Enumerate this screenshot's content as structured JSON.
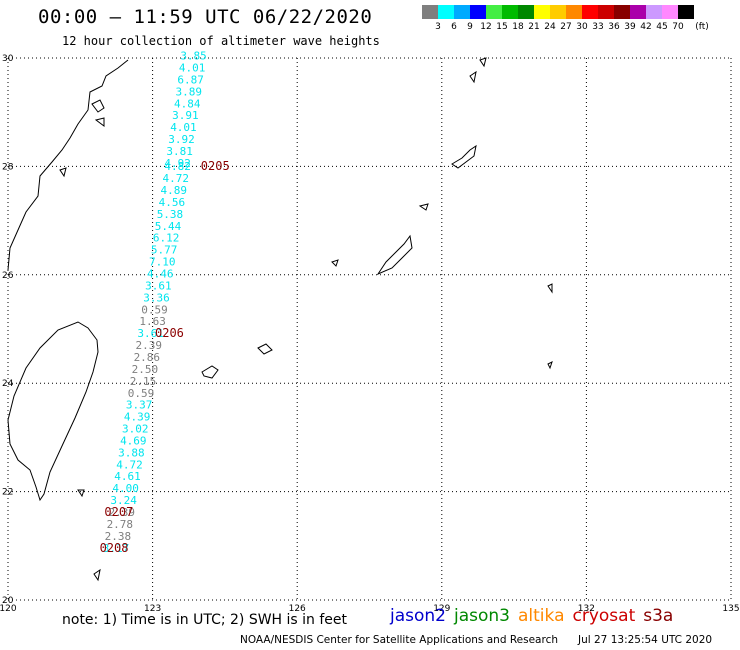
{
  "header": {
    "title": "00:00 – 11:59 UTC 06/22/2020",
    "subtitle": "12 hour collection of altimeter wave heights"
  },
  "legend": {
    "unit": "(ft)",
    "items": [
      {
        "label": "3",
        "color": "#7f7f7f"
      },
      {
        "label": "6",
        "color": "#00ffff"
      },
      {
        "label": "9",
        "color": "#00aaff"
      },
      {
        "label": "12",
        "color": "#0000ff"
      },
      {
        "label": "15",
        "color": "#44ee44"
      },
      {
        "label": "18",
        "color": "#00bb00"
      },
      {
        "label": "21",
        "color": "#008800"
      },
      {
        "label": "24",
        "color": "#ffff00"
      },
      {
        "label": "27",
        "color": "#ffcc00"
      },
      {
        "label": "30",
        "color": "#ff8800"
      },
      {
        "label": "33",
        "color": "#ff0000"
      },
      {
        "label": "36",
        "color": "#cc0000"
      },
      {
        "label": "39",
        "color": "#880000"
      },
      {
        "label": "42",
        "color": "#aa00aa"
      },
      {
        "label": "45",
        "color": "#cc99ff"
      },
      {
        "label": "70",
        "color": "#ff88ff"
      },
      {
        "label": "",
        "color": "#000000"
      }
    ]
  },
  "axes": {
    "lon_labels": [
      "120",
      "123",
      "126",
      "129",
      "132",
      "135"
    ],
    "lat_labels": [
      "30",
      "28",
      "26",
      "24",
      "22",
      "20"
    ]
  },
  "track": {
    "cyan_color": "#00e5ee",
    "gray_color": "#7f7f7f",
    "time_color": "#8b0000",
    "points": [
      {
        "v": "3.85",
        "c": "cyan",
        "lon": 123.85,
        "lat": 29.97
      },
      {
        "v": "4.01",
        "c": "cyan",
        "lon": 123.82,
        "lat": 29.75
      },
      {
        "v": "6.87",
        "c": "cyan",
        "lon": 123.79,
        "lat": 29.53
      },
      {
        "v": "3.89",
        "c": "cyan",
        "lon": 123.75,
        "lat": 29.31
      },
      {
        "v": "4.84",
        "c": "cyan",
        "lon": 123.72,
        "lat": 29.09
      },
      {
        "v": "3.91",
        "c": "cyan",
        "lon": 123.68,
        "lat": 28.87
      },
      {
        "v": "4.01",
        "c": "cyan",
        "lon": 123.64,
        "lat": 28.65
      },
      {
        "v": "3.92",
        "c": "cyan",
        "lon": 123.6,
        "lat": 28.43
      },
      {
        "v": "3.81",
        "c": "cyan",
        "lon": 123.56,
        "lat": 28.21
      },
      {
        "v": "4.92",
        "c": "cyan",
        "lon": 123.52,
        "lat": 27.99
      },
      {
        "v": "4.82",
        "c": "cyan",
        "lon": 123.52,
        "lat": 27.93
      },
      {
        "v": "4.72",
        "c": "cyan",
        "lon": 123.48,
        "lat": 27.71
      },
      {
        "v": "4.89",
        "c": "cyan",
        "lon": 123.44,
        "lat": 27.49
      },
      {
        "v": "4.56",
        "c": "cyan",
        "lon": 123.4,
        "lat": 27.27
      },
      {
        "v": "5.38",
        "c": "cyan",
        "lon": 123.36,
        "lat": 27.05
      },
      {
        "v": "5.44",
        "c": "cyan",
        "lon": 123.32,
        "lat": 26.83
      },
      {
        "v": "6.12",
        "c": "cyan",
        "lon": 123.28,
        "lat": 26.61
      },
      {
        "v": "5.77",
        "c": "cyan",
        "lon": 123.24,
        "lat": 26.39
      },
      {
        "v": "7.10",
        "c": "cyan",
        "lon": 123.2,
        "lat": 26.17
      },
      {
        "v": "4.46",
        "c": "cyan",
        "lon": 123.16,
        "lat": 25.95
      },
      {
        "v": "3.61",
        "c": "cyan",
        "lon": 123.12,
        "lat": 25.73
      },
      {
        "v": "3.36",
        "c": "cyan",
        "lon": 123.08,
        "lat": 25.51
      },
      {
        "v": "0.59",
        "c": "gray",
        "lon": 123.04,
        "lat": 25.29
      },
      {
        "v": "1.63",
        "c": "gray",
        "lon": 123.0,
        "lat": 25.07
      },
      {
        "v": "3.61",
        "c": "cyan",
        "lon": 122.96,
        "lat": 24.85
      },
      {
        "v": "2.39",
        "c": "gray",
        "lon": 122.92,
        "lat": 24.63
      },
      {
        "v": "2.86",
        "c": "gray",
        "lon": 122.88,
        "lat": 24.41
      },
      {
        "v": "2.50",
        "c": "gray",
        "lon": 122.84,
        "lat": 24.19
      },
      {
        "v": "2.15",
        "c": "gray",
        "lon": 122.8,
        "lat": 23.97
      },
      {
        "v": "0.59",
        "c": "gray",
        "lon": 122.76,
        "lat": 23.75
      },
      {
        "v": "3.37",
        "c": "cyan",
        "lon": 122.72,
        "lat": 23.53
      },
      {
        "v": "4.39",
        "c": "cyan",
        "lon": 122.68,
        "lat": 23.31
      },
      {
        "v": "3.02",
        "c": "cyan",
        "lon": 122.64,
        "lat": 23.09
      },
      {
        "v": "4.69",
        "c": "cyan",
        "lon": 122.6,
        "lat": 22.87
      },
      {
        "v": "3.88",
        "c": "cyan",
        "lon": 122.56,
        "lat": 22.65
      },
      {
        "v": "4.72",
        "c": "cyan",
        "lon": 122.52,
        "lat": 22.43
      },
      {
        "v": "4.61",
        "c": "cyan",
        "lon": 122.48,
        "lat": 22.21
      },
      {
        "v": "4.00",
        "c": "cyan",
        "lon": 122.44,
        "lat": 21.99
      },
      {
        "v": "3.24",
        "c": "cyan",
        "lon": 122.4,
        "lat": 21.77
      },
      {
        "v": "2.39",
        "c": "gray",
        "lon": 122.36,
        "lat": 21.55
      },
      {
        "v": "2.78",
        "c": "gray",
        "lon": 122.32,
        "lat": 21.33
      },
      {
        "v": "2.38",
        "c": "gray",
        "lon": 122.28,
        "lat": 21.11
      },
      {
        "v": "3.17",
        "c": "cyan",
        "lon": 122.24,
        "lat": 20.89
      }
    ],
    "times": [
      {
        "t": "0205",
        "lon": 124.0,
        "lat": 27.93
      },
      {
        "t": "0206",
        "lon": 123.05,
        "lat": 24.85
      },
      {
        "t": "0207",
        "lon": 122.0,
        "lat": 21.55
      },
      {
        "t": "0208",
        "lon": 121.9,
        "lat": 20.89
      }
    ]
  },
  "footer": {
    "note": "note:  1) Time is in UTC;  2) SWH is in feet",
    "satellites": [
      {
        "name": "jason2",
        "color": "#0000cc"
      },
      {
        "name": "jason3",
        "color": "#008800"
      },
      {
        "name": "altika",
        "color": "#ff8800"
      },
      {
        "name": "cryosat",
        "color": "#cc0000"
      },
      {
        "name": "s3a",
        "color": "#880000"
      }
    ],
    "credit": "NOAA/NESDIS Center for Satellite Applications and Research",
    "date": "Jul 27 13:25:54 UTC 2020"
  }
}
